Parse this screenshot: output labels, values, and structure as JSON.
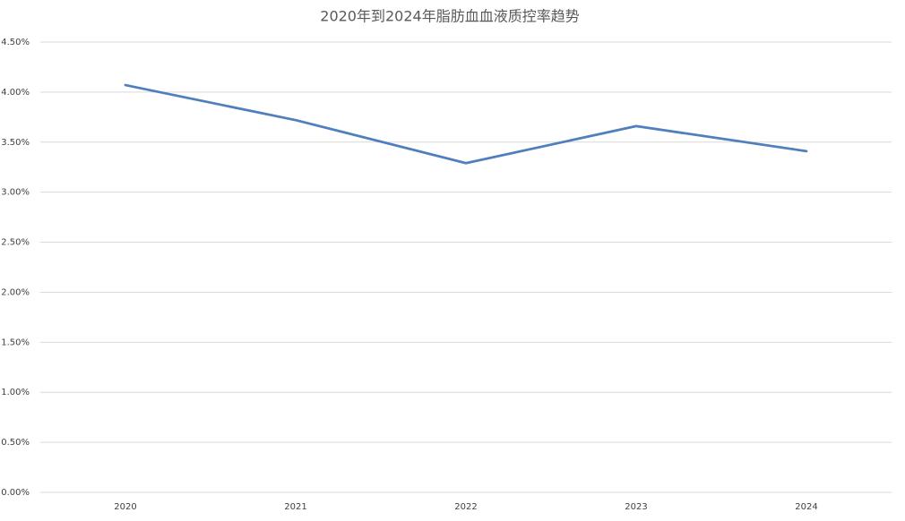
{
  "chart_data": {
    "type": "line",
    "title": "2020年到2024年脂肪血血液质控率趋势",
    "categories": [
      "2020",
      "2021",
      "2022",
      "2023",
      "2024"
    ],
    "series": [
      {
        "name": "质控率",
        "color": "#4f7fbc",
        "values": [
          4.07,
          3.72,
          3.29,
          3.66,
          3.41
        ]
      }
    ],
    "ylim": [
      0,
      4.5
    ],
    "yticks": [
      {
        "value": 0,
        "label": "0.00%"
      },
      {
        "value": 0.5,
        "label": "0.50%"
      },
      {
        "value": 1,
        "label": "1.00%"
      },
      {
        "value": 1.5,
        "label": "1.50%"
      },
      {
        "value": 2,
        "label": "2.00%"
      },
      {
        "value": 2.5,
        "label": "2.50%"
      },
      {
        "value": 3,
        "label": "3.00%"
      },
      {
        "value": 3.5,
        "label": "3.50%"
      },
      {
        "value": 4,
        "label": "4.00%"
      },
      {
        "value": 4.5,
        "label": "4.50%"
      }
    ],
    "grid": true
  }
}
